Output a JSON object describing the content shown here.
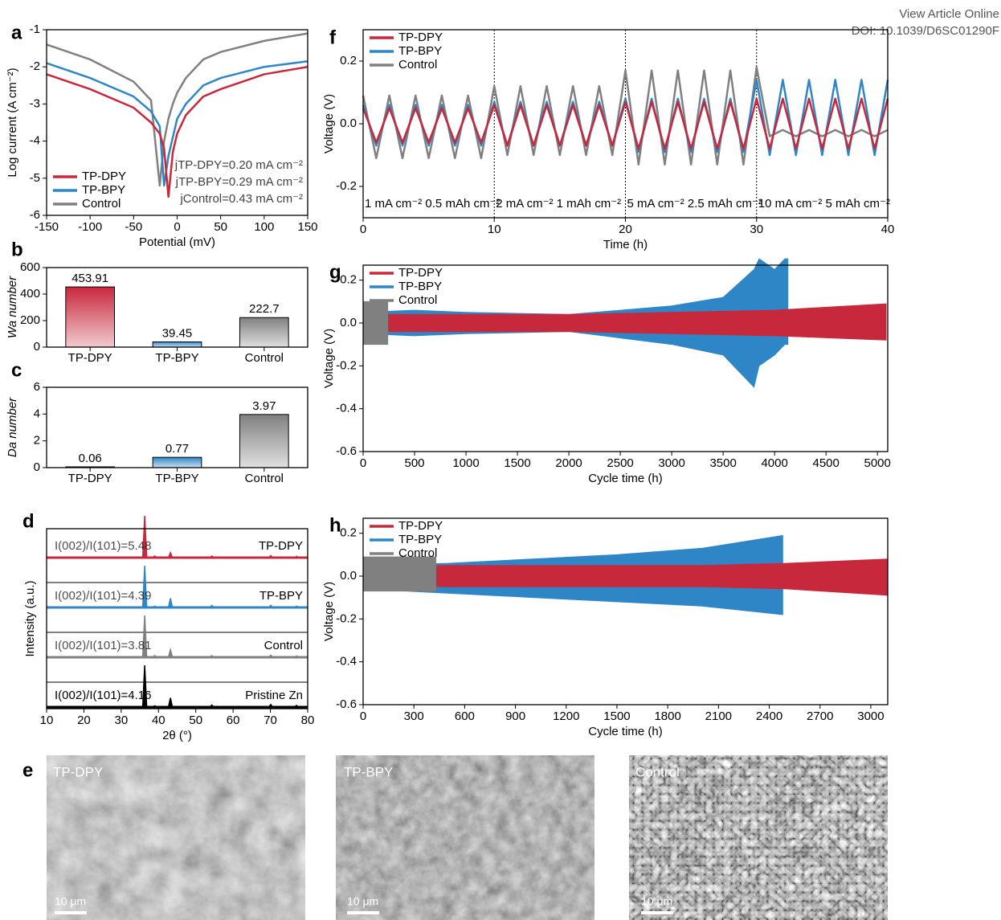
{
  "header": {
    "view": "View Article Online",
    "doi": "DOI: 10.1039/D6SC01290F"
  },
  "chart_data": [
    {
      "panel": "a",
      "type": "line",
      "xlabel": "Potential (mV)",
      "ylabel": "Log current (A cm⁻²)",
      "x": [
        -150,
        -100,
        -50,
        -30,
        -20,
        -15,
        -10,
        -5,
        0,
        10,
        30,
        50,
        100,
        150
      ],
      "series": [
        {
          "name": "TP-DPY",
          "color": "#c8283c",
          "values": [
            -2.2,
            -2.6,
            -3.1,
            -3.5,
            -3.8,
            -4.2,
            -5.5,
            -4.3,
            -3.8,
            -3.3,
            -2.8,
            -2.6,
            -2.2,
            -2.0
          ]
        },
        {
          "name": "TP-BPY",
          "color": "#2f86c6",
          "values": [
            -1.9,
            -2.3,
            -2.8,
            -3.2,
            -3.6,
            -5.2,
            -4.4,
            -3.9,
            -3.4,
            -3.0,
            -2.5,
            -2.3,
            -2.0,
            -1.85
          ]
        },
        {
          "name": "Control",
          "color": "#808080",
          "values": [
            -1.4,
            -1.8,
            -2.4,
            -2.9,
            -5.2,
            -4.0,
            -3.4,
            -3.0,
            -2.7,
            -2.3,
            -1.8,
            -1.6,
            -1.3,
            -1.1
          ]
        }
      ],
      "annotations": [
        "jTP-DPY=0.20 mA cm⁻²",
        "jTP-BPY=0.29 mA cm⁻²",
        "jControl=0.43 mA cm⁻²"
      ],
      "xlim": [
        -150,
        150
      ],
      "xticks": [
        -150,
        -100,
        -50,
        0,
        50,
        100,
        150
      ],
      "ylim": [
        -6,
        -1
      ],
      "yticks": [
        -1,
        -2,
        -3,
        -4,
        -5,
        -6
      ],
      "legend": "lower left"
    },
    {
      "panel": "b",
      "type": "bar",
      "ylabel": "Wa number",
      "categories": [
        "TP-DPY",
        "TP-BPY",
        "Control"
      ],
      "values": [
        453.91,
        39.45,
        222.7
      ],
      "colors": [
        "#c8283c",
        "#2f86c6",
        "#808080"
      ],
      "ylim": [
        0,
        600
      ],
      "yticks": [
        0,
        200,
        400,
        600
      ]
    },
    {
      "panel": "c",
      "type": "bar",
      "ylabel": "Da number",
      "categories": [
        "TP-DPY",
        "TP-BPY",
        "Control"
      ],
      "values": [
        0.06,
        0.77,
        3.97
      ],
      "colors": [
        "#c8283c",
        "#2f86c6",
        "#808080"
      ],
      "ylim": [
        0,
        6
      ],
      "yticks": [
        0,
        2,
        4,
        6
      ]
    },
    {
      "panel": "d",
      "type": "xrd",
      "xlabel": "2θ (°)",
      "ylabel": "Intensity (a.u.)",
      "x": [
        36.3,
        39.0,
        43.2,
        54.3,
        70.1,
        77.0
      ],
      "series": [
        {
          "name": "TP-DPY",
          "color": "#c8283c",
          "annotation": "I(002)/I(101)=5.48",
          "values": [
            100,
            4,
            12,
            4,
            5,
            3
          ]
        },
        {
          "name": "TP-BPY",
          "color": "#2f86c6",
          "annotation": "I(002)/I(101)=4.39",
          "values": [
            100,
            3,
            22,
            5,
            5,
            3
          ]
        },
        {
          "name": "Control",
          "color": "#808080",
          "annotation": "I(002)/I(101)=3.81",
          "values": [
            100,
            4,
            18,
            4,
            5,
            3
          ]
        },
        {
          "name": "Pristine Zn",
          "color": "#000000",
          "annotation": "I(002)/I(101)=4.16",
          "values": [
            100,
            3,
            22,
            5,
            6,
            4
          ]
        }
      ],
      "xlim": [
        10,
        80
      ],
      "xticks": [
        10,
        20,
        30,
        40,
        50,
        60,
        70,
        80
      ]
    },
    {
      "panel": "f",
      "type": "line",
      "xlabel": "Time (h)",
      "ylabel": "Voltage (V)",
      "x": [
        0,
        1,
        2,
        3,
        4,
        5,
        6,
        7,
        8,
        9,
        10,
        11,
        12,
        13,
        14,
        15,
        16,
        17,
        18,
        19,
        20,
        21,
        22,
        23,
        24,
        25,
        26,
        27,
        28,
        29,
        30,
        31,
        32,
        33,
        34,
        35,
        36,
        37,
        38,
        39,
        40
      ],
      "series": [
        {
          "name": "TP-DPY",
          "color": "#c8283c",
          "values": [
            0.05,
            -0.06,
            0.05,
            -0.06,
            0.05,
            -0.06,
            0.05,
            -0.06,
            0.05,
            -0.06,
            0.06,
            -0.07,
            0.06,
            -0.07,
            0.06,
            -0.07,
            0.06,
            -0.07,
            0.06,
            -0.07,
            0.07,
            -0.08,
            0.07,
            -0.08,
            0.07,
            -0.08,
            0.07,
            -0.08,
            0.07,
            -0.08,
            0.08,
            -0.08,
            0.08,
            -0.08,
            0.08,
            -0.08,
            0.08,
            -0.08,
            0.08,
            -0.08,
            0.08
          ]
        },
        {
          "name": "TP-BPY",
          "color": "#2f86c6",
          "values": [
            0.06,
            -0.07,
            0.06,
            -0.07,
            0.06,
            -0.07,
            0.06,
            -0.07,
            0.06,
            -0.07,
            0.07,
            -0.07,
            0.07,
            -0.07,
            0.07,
            -0.07,
            0.07,
            -0.07,
            0.07,
            -0.07,
            0.08,
            -0.09,
            0.08,
            -0.09,
            0.08,
            -0.09,
            0.08,
            -0.09,
            0.08,
            -0.09,
            0.14,
            -0.1,
            0.14,
            -0.1,
            0.14,
            -0.1,
            0.14,
            -0.1,
            0.14,
            -0.1,
            0.14
          ]
        },
        {
          "name": "Control",
          "color": "#808080",
          "values": [
            0.09,
            -0.11,
            0.09,
            -0.11,
            0.09,
            -0.11,
            0.09,
            -0.11,
            0.09,
            -0.11,
            0.12,
            -0.1,
            0.12,
            -0.1,
            0.12,
            -0.1,
            0.12,
            -0.1,
            0.12,
            -0.1,
            0.17,
            -0.13,
            0.17,
            -0.13,
            0.17,
            -0.13,
            0.17,
            -0.13,
            0.17,
            -0.13,
            0.18,
            -0.04,
            -0.02,
            -0.04,
            -0.02,
            -0.04,
            -0.02,
            -0.04,
            -0.02,
            -0.04,
            -0.02
          ]
        }
      ],
      "dividers": [
        10,
        20,
        30
      ],
      "segment_labels": [
        "1 mA cm⁻² 0.5 mAh cm⁻²",
        "2 mA cm⁻² 1 mAh cm⁻²",
        "5 mA cm⁻² 2.5 mAh cm⁻²",
        "10 mA cm⁻² 5 mAh cm⁻²"
      ],
      "xlim": [
        0,
        40
      ],
      "xticks": [
        0,
        10,
        20,
        30,
        40
      ],
      "ylim": [
        -0.3,
        0.3
      ],
      "yticks": [
        -0.2,
        {
          "value": 0,
          "label": "0.0"
        },
        0.2
      ],
      "legend": "upper left"
    },
    {
      "panel": "g",
      "type": "band",
      "xlabel": "Cycle time (h)",
      "ylabel": "Voltage (V)",
      "series": [
        {
          "name": "TP-DPY",
          "color": "#c8283c",
          "x": [
            0,
            1000,
            2000,
            3000,
            4000,
            5085
          ],
          "upper": [
            0.04,
            0.04,
            0.04,
            0.05,
            0.06,
            0.09
          ],
          "lower": [
            -0.04,
            -0.04,
            -0.04,
            -0.05,
            -0.06,
            -0.08
          ]
        },
        {
          "name": "TP-BPY",
          "color": "#2f86c6",
          "x": [
            0,
            500,
            1000,
            2000,
            2500,
            3000,
            3500,
            3800,
            3850,
            4000,
            4100,
            4130
          ],
          "upper": [
            0.05,
            0.06,
            0.05,
            0.04,
            0.06,
            0.08,
            0.12,
            0.25,
            0.3,
            0.25,
            0.3,
            0.3
          ],
          "lower": [
            -0.05,
            -0.06,
            -0.05,
            -0.04,
            -0.07,
            -0.1,
            -0.15,
            -0.3,
            -0.2,
            -0.15,
            -0.1,
            -0.1
          ]
        },
        {
          "name": "Control",
          "color": "#808080",
          "x": [
            0,
            240
          ],
          "upper": [
            0.1,
            0.1
          ],
          "lower": [
            -0.1,
            -0.1
          ]
        }
      ],
      "xlim": [
        0,
        5100
      ],
      "xticks": [
        0,
        500,
        1000,
        1500,
        2000,
        2500,
        3000,
        3500,
        4000,
        4500,
        5000
      ],
      "ylim": [
        -0.6,
        0.27
      ],
      "yticks": [
        -0.6,
        -0.4,
        -0.2,
        {
          "value": 0,
          "label": "0.0"
        },
        0.2
      ],
      "legend": "upper left"
    },
    {
      "panel": "h",
      "type": "band",
      "xlabel": "Cycle time (h)",
      "ylabel": "Voltage (V)",
      "series": [
        {
          "name": "TP-DPY",
          "color": "#c8283c",
          "x": [
            0,
            500,
            1000,
            1500,
            2000,
            2500,
            3100
          ],
          "upper": [
            0.04,
            0.05,
            0.05,
            0.05,
            0.05,
            0.06,
            0.08
          ],
          "lower": [
            -0.04,
            -0.05,
            -0.05,
            -0.05,
            -0.05,
            -0.06,
            -0.09
          ]
        },
        {
          "name": "TP-BPY",
          "color": "#2f86c6",
          "x": [
            0,
            500,
            1000,
            1500,
            2000,
            2480
          ],
          "upper": [
            0.05,
            0.06,
            0.08,
            0.1,
            0.13,
            0.19
          ],
          "lower": [
            -0.06,
            -0.08,
            -0.1,
            -0.12,
            -0.14,
            -0.18
          ]
        },
        {
          "name": "Control",
          "color": "#808080",
          "x": [
            0,
            430
          ],
          "upper": [
            0.09,
            0.09
          ],
          "lower": [
            -0.07,
            -0.07
          ]
        }
      ],
      "xlim": [
        0,
        3100
      ],
      "xticks": [
        0,
        300,
        600,
        900,
        1200,
        1500,
        1800,
        2100,
        2400,
        2700,
        3000
      ],
      "ylim": [
        -0.6,
        0.27
      ],
      "yticks": [
        -0.6,
        -0.4,
        -0.2,
        {
          "value": 0,
          "label": "0.0"
        },
        0.2
      ],
      "legend": "upper left"
    }
  ],
  "micrographs": {
    "panel": "e",
    "items": [
      {
        "label": "TP-DPY",
        "scale": "10 μm"
      },
      {
        "label": "TP-BPY",
        "scale": "10 μm"
      },
      {
        "label": "Control",
        "scale": "10 μm"
      }
    ]
  }
}
